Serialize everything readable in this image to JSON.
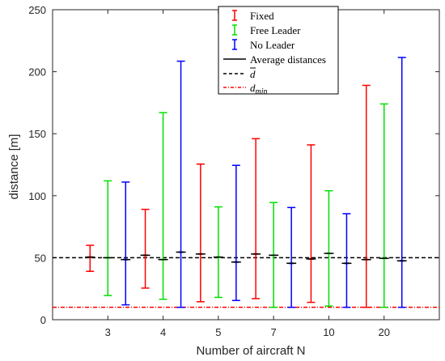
{
  "chart_data": {
    "type": "errorbar",
    "xlabel": "Number of aircraft N",
    "ylabel": "distance [m]",
    "ylim": [
      0,
      250
    ],
    "yticks": [
      0,
      50,
      100,
      150,
      200,
      250
    ],
    "categories": [
      "3",
      "4",
      "5",
      "7",
      "10",
      "20"
    ],
    "grid": false,
    "legend_position": "top-right",
    "series": [
      {
        "name": "Fixed",
        "color": "#ff0000",
        "mean": [
          50.5,
          52,
          53,
          53,
          49,
          48.5
        ],
        "lower": [
          39,
          25.5,
          14.5,
          17,
          14,
          10
        ],
        "upper": [
          60,
          89,
          125.5,
          146,
          141,
          189
        ]
      },
      {
        "name": "Free Leader",
        "color": "#00e000",
        "mean": [
          50,
          48.5,
          50.5,
          52,
          53.5,
          49.5
        ],
        "lower": [
          19.5,
          16.5,
          18,
          10,
          11,
          10
        ],
        "upper": [
          112,
          167,
          91,
          94.5,
          104,
          174
        ]
      },
      {
        "name": "No Leader",
        "color": "#0000ff",
        "mean": [
          48.5,
          54.5,
          46.5,
          45.5,
          45.5,
          47.5
        ],
        "lower": [
          12,
          10,
          15.5,
          10,
          10,
          10
        ],
        "upper": [
          111,
          208.5,
          124.5,
          90.5,
          85.5,
          211.5
        ]
      }
    ],
    "reference_lines": [
      {
        "name": "d̄",
        "value": 50,
        "style": "dashed",
        "color": "#000000"
      },
      {
        "name": "d_min",
        "value": 10,
        "style": "dash-dot",
        "color": "#ff0000"
      }
    ],
    "legend": [
      {
        "label": "Fixed",
        "kind": "errorbar",
        "color": "#ff0000"
      },
      {
        "label": "Free Leader",
        "kind": "errorbar",
        "color": "#00e000"
      },
      {
        "label": "No Leader",
        "kind": "errorbar",
        "color": "#0000ff"
      },
      {
        "label": "Average distances",
        "kind": "solid",
        "color": "#000000"
      },
      {
        "label": "d̄",
        "kind": "dashed",
        "color": "#000000"
      },
      {
        "label": "d_min",
        "kind": "dashdot",
        "color": "#ff0000"
      }
    ]
  }
}
